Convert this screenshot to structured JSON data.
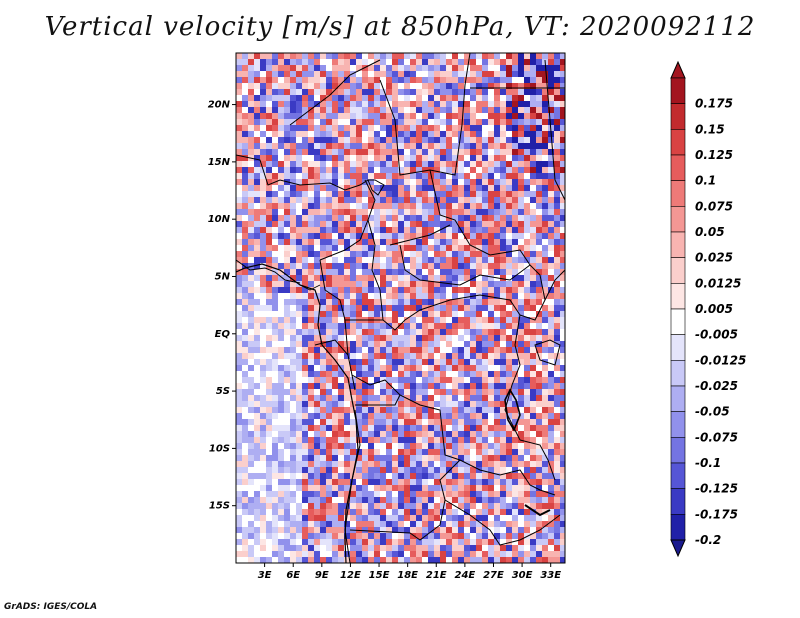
{
  "title": "Vertical velocity [m/s] at 850hPa, VT: 2020092112",
  "credit": "GrADS: IGES/COLA",
  "map": {
    "lat_labels": [
      {
        "label": "20N",
        "lat": 20
      },
      {
        "label": "15N",
        "lat": 15
      },
      {
        "label": "10N",
        "lat": 10
      },
      {
        "label": "5N",
        "lat": 5
      },
      {
        "label": "EQ",
        "lat": 0
      },
      {
        "label": "5S",
        "lat": -5
      },
      {
        "label": "10S",
        "lat": -10
      },
      {
        "label": "15S",
        "lat": -15
      }
    ],
    "lon_labels": [
      {
        "label": "3E",
        "lon": 3
      },
      {
        "label": "6E",
        "lon": 6
      },
      {
        "label": "9E",
        "lon": 9
      },
      {
        "label": "12E",
        "lon": 12
      },
      {
        "label": "15E",
        "lon": 15
      },
      {
        "label": "18E",
        "lon": 18
      },
      {
        "label": "21E",
        "lon": 21
      },
      {
        "label": "24E",
        "lon": 24
      },
      {
        "label": "27E",
        "lon": 27
      },
      {
        "label": "30E",
        "lon": 30
      },
      {
        "label": "33E",
        "lon": 33
      }
    ]
  },
  "colorbar": {
    "levels": [
      {
        "label": "0.175",
        "color": "#a3151f"
      },
      {
        "label": "0.15",
        "color": "#c22b2e"
      },
      {
        "label": "0.125",
        "color": "#d94343"
      },
      {
        "label": "0.1",
        "color": "#e65c5c"
      },
      {
        "label": "0.075",
        "color": "#ee7a78"
      },
      {
        "label": "0.05",
        "color": "#f49794"
      },
      {
        "label": "0.025",
        "color": "#f8b4b1"
      },
      {
        "label": "0.0125",
        "color": "#fbcfcc"
      },
      {
        "label": "0.005",
        "color": "#fde6e4"
      },
      {
        "label": "-0.005",
        "color": "#ffffff"
      },
      {
        "label": "-0.0125",
        "color": "#e4e4fb"
      },
      {
        "label": "-0.025",
        "color": "#c9c9f7"
      },
      {
        "label": "-0.05",
        "color": "#aeaef2"
      },
      {
        "label": "-0.075",
        "color": "#9191ec"
      },
      {
        "label": "-0.1",
        "color": "#7474e2"
      },
      {
        "label": "-0.125",
        "color": "#5656d6"
      },
      {
        "label": "-0.175",
        "color": "#3a3ac4"
      },
      {
        "label": "-0.2",
        "color": "#2020a8"
      }
    ],
    "top_color": "#a3151f",
    "bottom_color": "#1a1a8e"
  }
}
